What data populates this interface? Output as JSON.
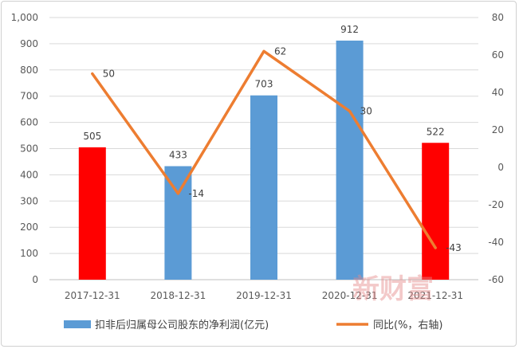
{
  "chart_data": {
    "type": "bar",
    "categories": [
      "2017-12-31",
      "2018-12-31",
      "2019-12-31",
      "2020-12-31",
      "2021-12-31"
    ],
    "series": [
      {
        "name": "扣非后归属母公司股东的净利润(亿元)",
        "type": "bar",
        "axis": "left",
        "values": [
          505,
          433,
          703,
          912,
          522
        ],
        "colors": [
          "#ff0000",
          "#5b9bd5",
          "#5b9bd5",
          "#5b9bd5",
          "#ff0000"
        ],
        "labels": [
          "505",
          "433",
          "703",
          "912",
          "522"
        ]
      },
      {
        "name": "同比(%，右轴)",
        "type": "line",
        "axis": "right",
        "values": [
          50,
          -14,
          62,
          30,
          -43
        ],
        "color": "#ed7d31",
        "labels": [
          "50",
          "-14",
          "62",
          "30",
          "-43"
        ]
      }
    ],
    "y_left": {
      "range": [
        0,
        1000
      ],
      "ticks": [
        "0",
        "100",
        "200",
        "300",
        "400",
        "500",
        "600",
        "700",
        "800",
        "900",
        "1,000"
      ]
    },
    "y_right": {
      "range": [
        -60,
        80
      ],
      "ticks": [
        "-60",
        "-40",
        "-20",
        "0",
        "20",
        "40",
        "60",
        "80"
      ]
    },
    "grid": true,
    "legend_position": "bottom"
  },
  "legend": {
    "bar_label": "扣非后归属母公司股东的净利润(亿元)",
    "line_label": "同比(%，右轴)",
    "bar_color": "#5b9bd5",
    "line_color": "#ed7d31"
  },
  "watermark": "新财富"
}
